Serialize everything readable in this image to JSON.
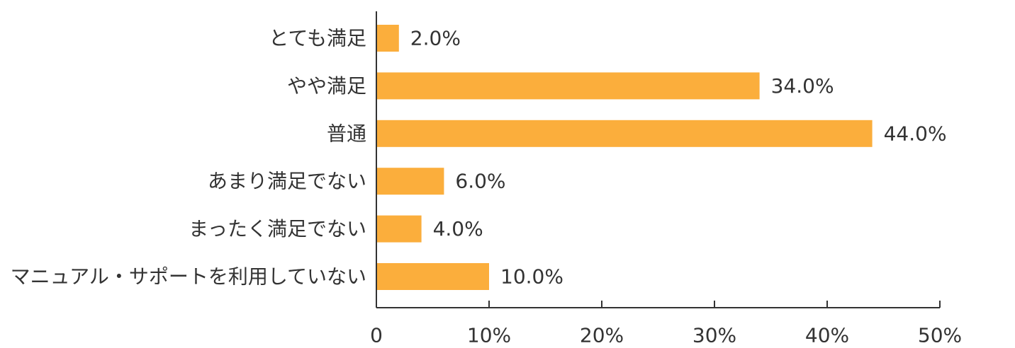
{
  "chart_data": {
    "type": "bar",
    "orientation": "horizontal",
    "title": "",
    "xlabel": "",
    "ylabel": "",
    "categories": [
      "とても満足",
      "やや満足",
      "普通",
      "あまり満足でない",
      "まったく満足でない",
      "マニュアル・サポートを利用していない"
    ],
    "values": [
      2.0,
      34.0,
      44.0,
      6.0,
      4.0,
      10.0
    ],
    "value_labels": [
      "2.0%",
      "34.0%",
      "44.0%",
      "6.0%",
      "4.0%",
      "10.0%"
    ],
    "xlim": [
      0,
      50
    ],
    "ticks": [
      0,
      10,
      20,
      30,
      40,
      50
    ],
    "tick_labels": [
      "0",
      "10%",
      "20%",
      "30%",
      "40%",
      "50%"
    ],
    "grid": false,
    "legend": "none",
    "bar_color": "#FBAE3C",
    "axis_color": "#333333",
    "text_color": "#333333"
  }
}
